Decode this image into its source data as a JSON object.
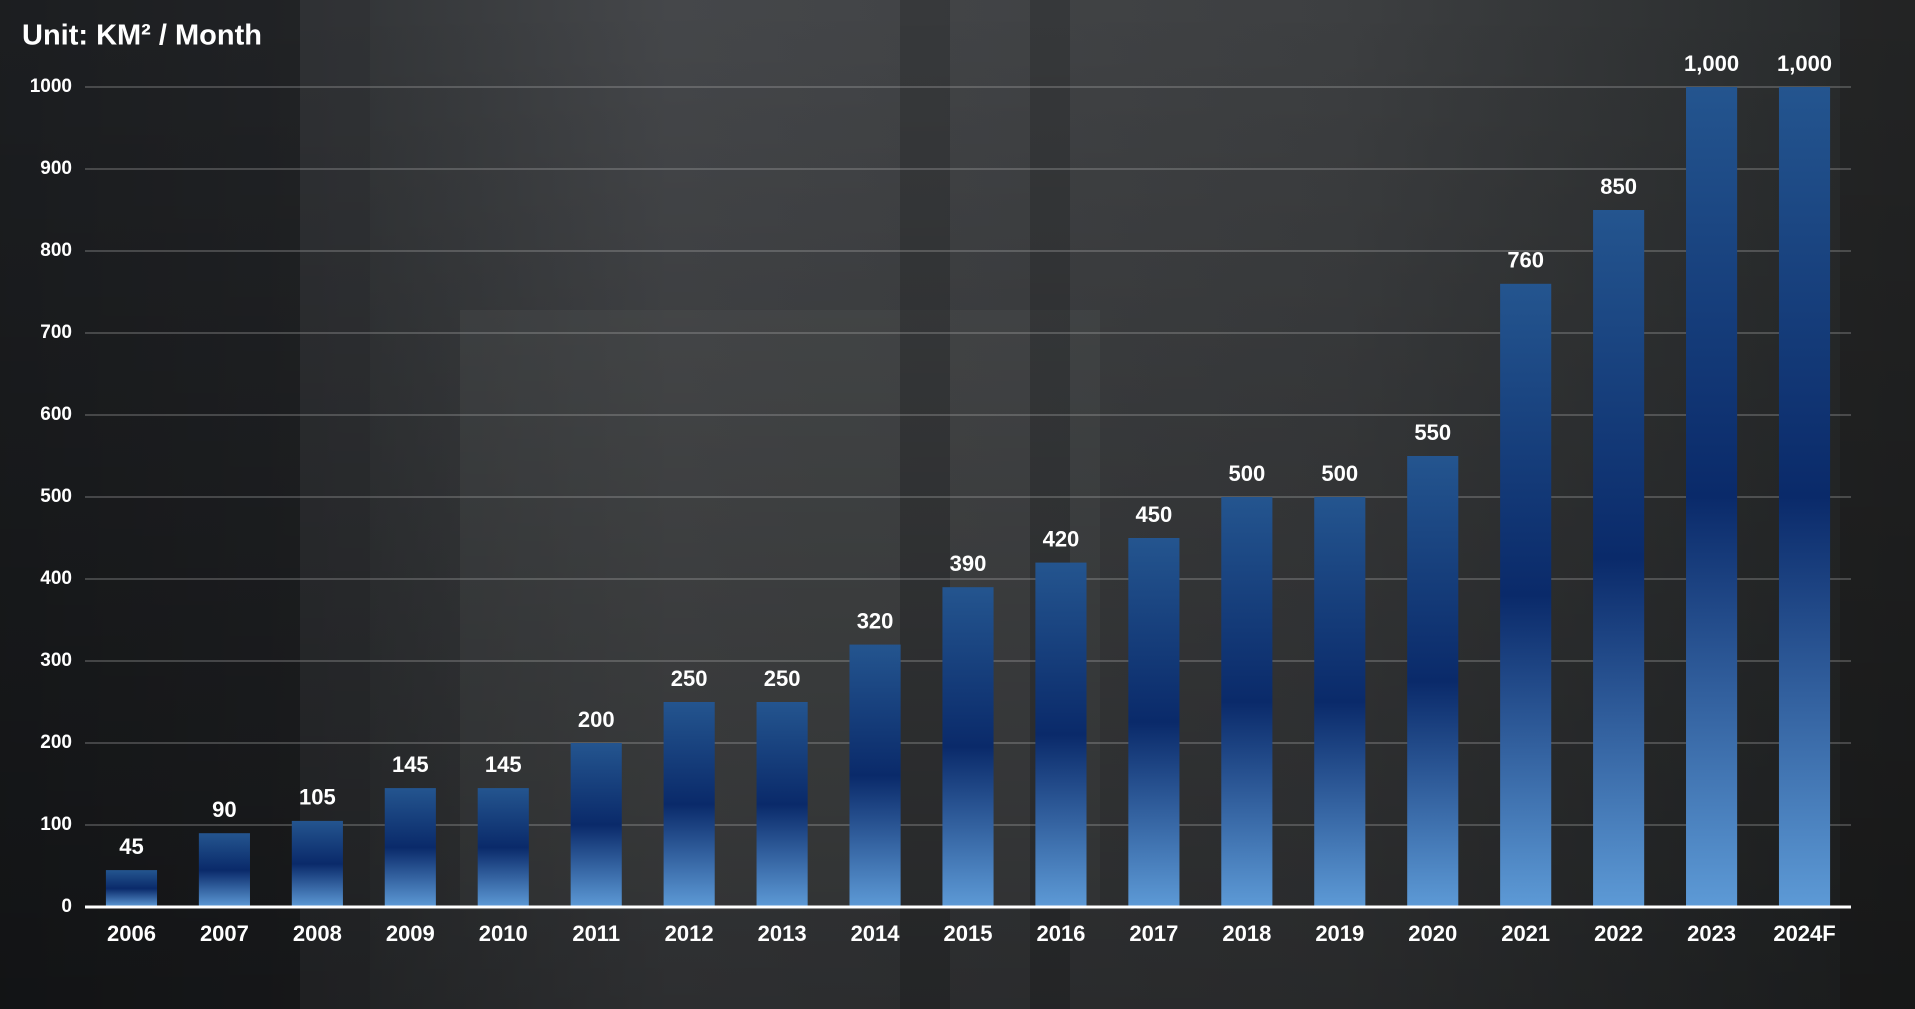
{
  "chart_data": {
    "type": "bar",
    "title": "Unit: KM² / Month",
    "categories": [
      "2006",
      "2007",
      "2008",
      "2009",
      "2010",
      "2011",
      "2012",
      "2013",
      "2014",
      "2015",
      "2016",
      "2017",
      "2018",
      "2019",
      "2020",
      "2021",
      "2022",
      "2023",
      "2024F"
    ],
    "values": [
      45,
      90,
      105,
      145,
      145,
      200,
      250,
      250,
      320,
      390,
      420,
      450,
      500,
      500,
      550,
      760,
      850,
      1000,
      1000
    ],
    "value_labels": [
      "45",
      "90",
      "105",
      "145",
      "145",
      "200",
      "250",
      "250",
      "320",
      "390",
      "420",
      "450",
      "500",
      "500",
      "550",
      "760",
      "850",
      "1,000",
      "1,000"
    ],
    "colors": [
      "#24558f",
      "#0a2a6a",
      "#5d9ad6"
    ],
    "ylim": [
      0,
      1000
    ],
    "yticks": [
      0,
      100,
      200,
      300,
      400,
      500,
      600,
      700,
      800,
      900,
      1000
    ],
    "grid": true
  }
}
